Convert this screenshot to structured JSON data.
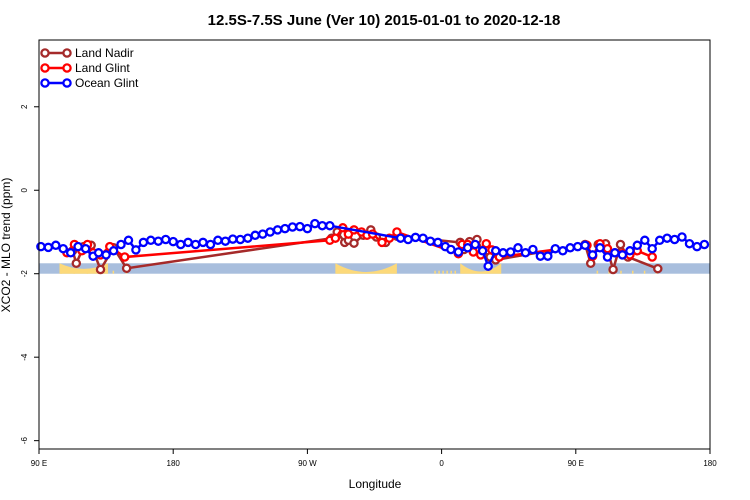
{
  "chart_data": {
    "type": "line",
    "title": "12.5S-7.5S June (Ver 10)   2015-01-01 to 2020-12-18",
    "xlabel": "Longitude",
    "ylabel": "XCO2 - MLO trend (ppm)",
    "xlim": [
      90,
      450
    ],
    "ylim": [
      -6.2,
      3.6
    ],
    "x_ticks": [
      {
        "value": 90,
        "label": "90 E"
      },
      {
        "value": 162,
        "label": "180"
      },
      {
        "value": 234,
        "label": "90 W"
      },
      {
        "value": 306,
        "label": "0"
      },
      {
        "value": 378,
        "label": "90 E"
      },
      {
        "value": 450,
        "label": "180"
      }
    ],
    "y_ticks": [
      {
        "value": 2,
        "label": "2"
      },
      {
        "value": 0,
        "label": "0"
      },
      {
        "value": -2,
        "label": "-2"
      },
      {
        "value": -4,
        "label": "-4"
      },
      {
        "value": -6,
        "label": "-6"
      }
    ],
    "legend_position": "top-left",
    "band": {
      "y_from": -2.0,
      "y_to": -1.75,
      "ocean_color": "#a8bedd",
      "land_color": "#fcd97a"
    },
    "land_segments": [
      {
        "x0": 98,
        "x1": 140,
        "profile": "sparse"
      },
      {
        "x0": 249,
        "x1": 282,
        "profile": "dome",
        "height": 0.42
      },
      {
        "x0": 301,
        "x1": 314,
        "profile": "sparse"
      },
      {
        "x0": 101,
        "x1": 127,
        "profile": "dome",
        "height": 0.05
      },
      {
        "x0": 316,
        "x1": 338,
        "profile": "dome",
        "height": 0.36
      },
      {
        "x0": 386,
        "x1": 424,
        "profile": "sparse"
      }
    ],
    "series": [
      {
        "name": "Land Nadir",
        "color": "#a52a2a",
        "x": [
          108,
          110,
          114,
          118,
          123,
          130,
          137,
          247,
          250,
          254,
          256,
          259,
          264,
          268,
          271,
          276,
          282,
          316,
          318,
          321,
          325,
          328,
          332,
          335,
          383,
          386,
          390,
          394,
          398,
          402,
          406,
          422
        ],
        "y": [
          -1.45,
          -1.75,
          -1.35,
          -1.32,
          -1.9,
          -1.38,
          -1.87,
          -1.15,
          -1.0,
          -1.25,
          -1.2,
          -1.27,
          -1.08,
          -0.95,
          -1.12,
          -1.25,
          -1.1,
          -1.25,
          -1.42,
          -1.23,
          -1.18,
          -1.45,
          -1.6,
          -1.67,
          -1.3,
          -1.75,
          -1.3,
          -1.28,
          -1.9,
          -1.3,
          -1.6,
          -1.88
        ]
      },
      {
        "name": "Land Glint",
        "color": "#ff0000",
        "x": [
          105,
          109,
          113,
          116,
          119,
          123,
          128,
          136,
          246,
          249,
          253,
          256,
          259,
          263,
          266,
          269,
          274,
          278,
          282,
          315,
          317,
          320,
          323,
          327,
          330,
          333,
          337,
          384,
          387,
          391,
          395,
          399,
          403,
          407,
          411,
          419
        ],
        "y": [
          -1.5,
          -1.3,
          -1.45,
          -1.3,
          -1.5,
          -1.55,
          -1.35,
          -1.6,
          -1.2,
          -1.15,
          -0.9,
          -1.05,
          -0.95,
          -1.0,
          -1.08,
          -1.05,
          -1.25,
          -1.15,
          -1.0,
          -1.52,
          -1.3,
          -1.3,
          -1.48,
          -1.55,
          -1.28,
          -1.43,
          -1.6,
          -1.32,
          -1.58,
          -1.28,
          -1.4,
          -1.5,
          -1.52,
          -1.55,
          -1.45,
          -1.6
        ]
      },
      {
        "name": "Ocean Glint",
        "color": "#0000ff",
        "x": [
          91,
          95,
          99,
          103,
          107,
          111,
          115,
          119,
          122,
          126,
          130,
          134,
          138,
          142,
          146,
          150,
          154,
          158,
          162,
          166,
          170,
          174,
          178,
          182,
          186,
          190,
          194,
          198,
          202,
          206,
          210,
          214,
          218,
          222,
          226,
          230,
          234,
          238,
          242,
          246,
          284,
          288,
          292,
          296,
          300,
          304,
          308,
          311,
          315,
          320,
          324,
          328,
          331,
          335,
          339,
          343,
          347,
          351,
          355,
          359,
          363,
          367,
          371,
          375,
          379,
          383,
          387,
          391,
          395,
          399,
          403,
          407,
          411,
          415,
          419,
          423,
          427,
          431,
          435,
          439,
          443,
          447
        ],
        "y": [
          -1.35,
          -1.37,
          -1.32,
          -1.4,
          -1.5,
          -1.35,
          -1.4,
          -1.58,
          -1.5,
          -1.55,
          -1.45,
          -1.3,
          -1.2,
          -1.43,
          -1.25,
          -1.2,
          -1.22,
          -1.18,
          -1.23,
          -1.3,
          -1.25,
          -1.3,
          -1.25,
          -1.3,
          -1.2,
          -1.22,
          -1.17,
          -1.18,
          -1.15,
          -1.08,
          -1.05,
          -1.0,
          -0.95,
          -0.92,
          -0.88,
          -0.87,
          -0.92,
          -0.8,
          -0.85,
          -0.85,
          -1.15,
          -1.18,
          -1.13,
          -1.15,
          -1.22,
          -1.25,
          -1.35,
          -1.42,
          -1.48,
          -1.38,
          -1.3,
          -1.45,
          -1.82,
          -1.45,
          -1.5,
          -1.48,
          -1.38,
          -1.5,
          -1.42,
          -1.58,
          -1.58,
          -1.4,
          -1.45,
          -1.38,
          -1.35,
          -1.32,
          -1.55,
          -1.38,
          -1.6,
          -1.5,
          -1.55,
          -1.45,
          -1.32,
          -1.2,
          -1.4,
          -1.2,
          -1.15,
          -1.18,
          -1.12,
          -1.28,
          -1.35,
          -1.3
        ]
      }
    ]
  }
}
